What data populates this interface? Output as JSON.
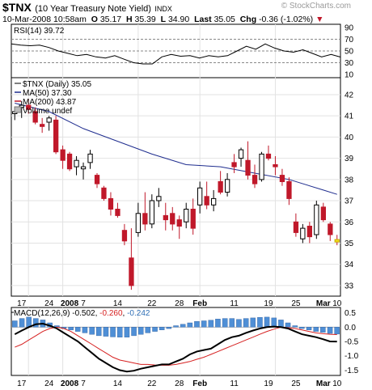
{
  "header": {
    "symbol": "$TNX",
    "name": "(10 Year Treasury Note Yield)",
    "exchange": "INDX",
    "date": "10-Mar-2008 10:58am",
    "open_label": "O",
    "open": "35.17",
    "high_label": "H",
    "high": "35.39",
    "low_label": "L",
    "low": "34.90",
    "last_label": "Last",
    "last": "35.05",
    "chg_label": "Chg",
    "chg": "-0.36 (-1.02%)",
    "chg_marker": "▼",
    "watermark": "© StockCharts.com",
    "up_color": "#000000",
    "down_color": "#c0182a"
  },
  "chart_data": [
    {
      "type": "line",
      "panel": "rsi",
      "label": "RSI(14) 39.72",
      "ylim": [
        10,
        90
      ],
      "yticks": [
        10,
        30,
        50,
        70,
        90
      ],
      "reference_lines": [
        30,
        50,
        70
      ],
      "series": [
        {
          "name": "RSI(14)",
          "values": [
            62,
            60,
            59,
            60,
            56,
            50,
            46,
            42,
            44,
            40,
            38,
            42,
            36,
            30,
            28,
            28,
            40,
            44,
            41,
            42,
            38,
            42,
            40,
            42,
            50,
            58,
            53,
            62,
            55,
            50,
            48,
            52,
            46,
            40,
            44,
            39.72
          ]
        }
      ]
    },
    {
      "type": "candlestick",
      "panel": "price",
      "label": "$TNX (Daily) 35.05",
      "ylim": [
        32.5,
        42.8
      ],
      "yticks": [
        33,
        34,
        35,
        36,
        37,
        38,
        39,
        40,
        41,
        42
      ],
      "x_labels": [
        "17",
        "24",
        "2008",
        "7",
        "14",
        "22",
        "28",
        "Feb",
        "11",
        "19",
        "25",
        "Mar",
        "10"
      ],
      "bars": [
        {
          "o": 41.1,
          "h": 41.4,
          "l": 40.8,
          "c": 41.2
        },
        {
          "o": 41.4,
          "h": 41.7,
          "l": 40.9,
          "c": 41.5
        },
        {
          "o": 41.5,
          "h": 41.8,
          "l": 41.1,
          "c": 41.3
        },
        {
          "o": 41.2,
          "h": 41.4,
          "l": 40.6,
          "c": 40.7
        },
        {
          "o": 40.6,
          "h": 40.9,
          "l": 40.2,
          "c": 40.5
        },
        {
          "o": 40.7,
          "h": 41.0,
          "l": 40.3,
          "c": 40.9
        },
        {
          "o": 40.8,
          "h": 41.0,
          "l": 39.2,
          "c": 39.3
        },
        {
          "o": 39.4,
          "h": 39.6,
          "l": 38.5,
          "c": 38.9
        },
        {
          "o": 39.2,
          "h": 39.3,
          "l": 38.4,
          "c": 38.5
        },
        {
          "o": 38.6,
          "h": 39.1,
          "l": 38.2,
          "c": 38.9
        },
        {
          "o": 38.5,
          "h": 38.8,
          "l": 38.0,
          "c": 38.6
        },
        {
          "o": 38.8,
          "h": 39.4,
          "l": 38.5,
          "c": 39.2
        },
        {
          "o": 38.2,
          "h": 38.3,
          "l": 37.6,
          "c": 37.8
        },
        {
          "o": 37.6,
          "h": 37.7,
          "l": 37.0,
          "c": 37.1
        },
        {
          "o": 37.1,
          "h": 37.4,
          "l": 36.3,
          "c": 36.6
        },
        {
          "o": 36.6,
          "h": 36.9,
          "l": 36.2,
          "c": 36.3
        },
        {
          "o": 35.6,
          "h": 35.9,
          "l": 34.9,
          "c": 35.1
        },
        {
          "o": 34.3,
          "h": 35.7,
          "l": 32.8,
          "c": 33.0
        },
        {
          "o": 35.5,
          "h": 36.9,
          "l": 35.3,
          "c": 36.4
        },
        {
          "o": 36.4,
          "h": 37.4,
          "l": 35.6,
          "c": 35.9
        },
        {
          "o": 35.9,
          "h": 37.3,
          "l": 35.7,
          "c": 37.0
        },
        {
          "o": 37.0,
          "h": 37.6,
          "l": 36.7,
          "c": 37.2
        },
        {
          "o": 36.3,
          "h": 36.9,
          "l": 35.6,
          "c": 36.1
        },
        {
          "o": 36.4,
          "h": 36.7,
          "l": 35.6,
          "c": 35.9
        },
        {
          "o": 36.1,
          "h": 36.3,
          "l": 35.2,
          "c": 35.8
        },
        {
          "o": 36.0,
          "h": 36.9,
          "l": 35.7,
          "c": 36.6
        },
        {
          "o": 36.6,
          "h": 37.1,
          "l": 35.4,
          "c": 35.7
        },
        {
          "o": 36.8,
          "h": 37.9,
          "l": 36.4,
          "c": 37.6
        },
        {
          "o": 37.2,
          "h": 37.9,
          "l": 36.6,
          "c": 36.8
        },
        {
          "o": 36.8,
          "h": 37.5,
          "l": 36.5,
          "c": 37.1
        },
        {
          "o": 37.9,
          "h": 38.4,
          "l": 37.3,
          "c": 37.4
        },
        {
          "o": 37.4,
          "h": 38.3,
          "l": 37.2,
          "c": 38.0
        },
        {
          "o": 38.8,
          "h": 39.2,
          "l": 38.3,
          "c": 38.6
        },
        {
          "o": 39.0,
          "h": 39.5,
          "l": 38.6,
          "c": 39.4
        },
        {
          "o": 38.9,
          "h": 39.8,
          "l": 38.0,
          "c": 38.2
        },
        {
          "o": 38.2,
          "h": 38.7,
          "l": 37.6,
          "c": 37.8
        },
        {
          "o": 38.0,
          "h": 39.3,
          "l": 37.9,
          "c": 39.2
        },
        {
          "o": 39.2,
          "h": 39.6,
          "l": 38.9,
          "c": 39.0
        },
        {
          "o": 38.7,
          "h": 39.1,
          "l": 38.2,
          "c": 38.6
        },
        {
          "o": 38.2,
          "h": 38.5,
          "l": 37.7,
          "c": 37.9
        },
        {
          "o": 37.9,
          "h": 38.1,
          "l": 36.8,
          "c": 37.1
        },
        {
          "o": 36.0,
          "h": 36.4,
          "l": 35.3,
          "c": 35.5
        },
        {
          "o": 35.2,
          "h": 35.9,
          "l": 35.0,
          "c": 35.7
        },
        {
          "o": 35.8,
          "h": 36.0,
          "l": 35.0,
          "c": 35.3
        },
        {
          "o": 35.4,
          "h": 37.0,
          "l": 35.2,
          "c": 36.8
        },
        {
          "o": 36.7,
          "h": 36.9,
          "l": 36.0,
          "c": 36.1
        },
        {
          "o": 35.9,
          "h": 36.0,
          "l": 35.1,
          "c": 35.4
        },
        {
          "o": 35.17,
          "h": 35.39,
          "l": 34.9,
          "c": 35.05
        }
      ],
      "series": [
        {
          "name": "MA(50) 37.30",
          "color": "#1e2c8e",
          "x": [
            0,
            5,
            10,
            15,
            20,
            25,
            30,
            35,
            40,
            45,
            47
          ],
          "values": [
            41.6,
            41.2,
            40.4,
            39.8,
            39.2,
            38.7,
            38.6,
            38.3,
            38.0,
            37.5,
            37.3
          ]
        },
        {
          "name": "MA(200) 43.87",
          "color": "#c0182a",
          "values": []
        }
      ],
      "legend": [
        "$TNX (Daily) 35.05",
        "MA(50) 37.30",
        "MA(200) 43.87",
        "Volume undef"
      ],
      "legend_placement": "top-left"
    },
    {
      "type": "bar",
      "panel": "macd",
      "label": "MACD(12,26,9) -0.502, -0.260, -0.242",
      "label_parts": {
        "name": "MACD(12,26,9)",
        "macd": "-0.502",
        "signal": "-0.260",
        "histogram": "-0.242"
      },
      "ylim": [
        -1.6,
        0.6
      ],
      "yticks": [
        -1.5,
        -1.0,
        -0.5,
        0.0,
        0.5
      ],
      "series": [
        {
          "name": "MACD",
          "color": "#000000",
          "values": [
            -0.25,
            -0.12,
            0.0,
            0.1,
            0.12,
            0.05,
            -0.05,
            -0.2,
            -0.35,
            -0.5,
            -0.7,
            -0.9,
            -1.1,
            -1.25,
            -1.4,
            -1.5,
            -1.55,
            -1.52,
            -1.45,
            -1.4,
            -1.35,
            -1.3,
            -1.3,
            -1.2,
            -1.1,
            -0.95,
            -0.85,
            -0.8,
            -0.75,
            -0.6,
            -0.45,
            -0.35,
            -0.3,
            -0.2,
            -0.12,
            -0.05,
            0.0,
            0.02,
            0.0,
            -0.05,
            -0.15,
            -0.25,
            -0.3,
            -0.35,
            -0.42,
            -0.5,
            -0.502
          ]
        },
        {
          "name": "Signal",
          "color": "#d62020",
          "values": [
            -0.7,
            -0.6,
            -0.45,
            -0.3,
            -0.15,
            -0.05,
            0.0,
            -0.05,
            -0.15,
            -0.3,
            -0.45,
            -0.6,
            -0.75,
            -0.9,
            -1.05,
            -1.15,
            -1.2,
            -1.25,
            -1.3,
            -1.3,
            -1.32,
            -1.33,
            -1.33,
            -1.3,
            -1.25,
            -1.2,
            -1.12,
            -1.05,
            -0.95,
            -0.85,
            -0.75,
            -0.65,
            -0.55,
            -0.45,
            -0.35,
            -0.25,
            -0.15,
            -0.07,
            0.0,
            -0.02,
            -0.05,
            -0.1,
            -0.15,
            -0.2,
            -0.23,
            -0.25,
            -0.26
          ]
        },
        {
          "name": "Histogram",
          "color": "#4f8fd6",
          "values": [
            0.22,
            0.3,
            0.35,
            0.3,
            0.25,
            0.15,
            0.05,
            -0.05,
            -0.1,
            -0.15,
            -0.2,
            -0.25,
            -0.3,
            -0.32,
            -0.34,
            -0.35,
            -0.35,
            -0.3,
            -0.25,
            -0.2,
            -0.15,
            -0.1,
            -0.05,
            0.05,
            0.1,
            0.15,
            0.2,
            0.22,
            0.24,
            0.28,
            0.3,
            0.3,
            0.27,
            0.3,
            0.32,
            0.34,
            0.35,
            0.32,
            0.25,
            0.15,
            0.05,
            -0.05,
            -0.1,
            -0.15,
            -0.18,
            -0.22,
            -0.242
          ]
        }
      ]
    }
  ]
}
